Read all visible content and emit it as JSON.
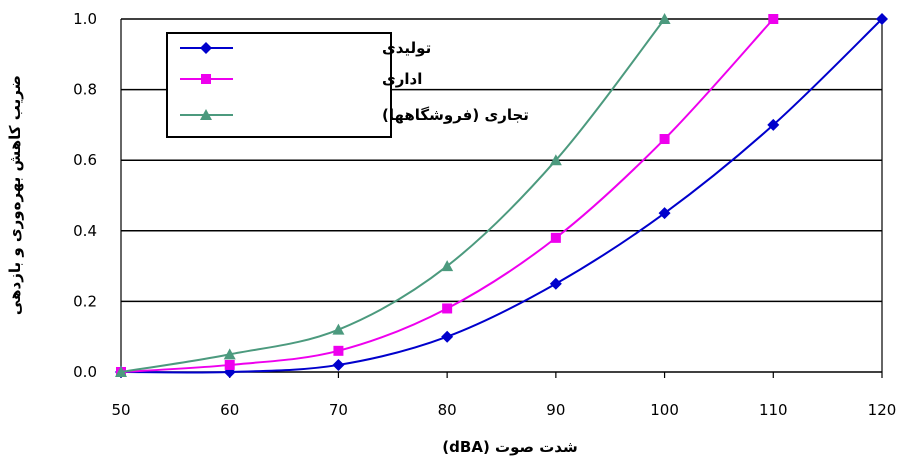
{
  "chart_data": {
    "type": "line",
    "xlabel": "شدت صوت (dBA)",
    "ylabel": "ضریب کاهش بهره‌وری و بازدهی",
    "x": [
      50,
      60,
      70,
      80,
      90,
      100,
      110,
      120
    ],
    "xlim": [
      50,
      120
    ],
    "ylim": [
      0,
      1
    ],
    "xticks": [
      "50",
      "60",
      "70",
      "80",
      "90",
      "100",
      "110",
      "120"
    ],
    "yticks": [
      "0.0",
      "0.2",
      "0.4",
      "0.6",
      "0.8",
      "1.0"
    ],
    "grid": "horizontal",
    "legend_position": "top-left",
    "series": [
      {
        "name": "تولیدی",
        "color": "#0000cc",
        "marker": "diamond",
        "x": [
          50,
          60,
          70,
          80,
          90,
          100,
          110,
          120
        ],
        "values": [
          0.0,
          0.0,
          0.02,
          0.1,
          0.25,
          0.45,
          0.7,
          1.0
        ]
      },
      {
        "name": "اداری",
        "color": "#ee00ee",
        "marker": "square",
        "x": [
          50,
          60,
          70,
          80,
          90,
          100,
          110
        ],
        "values": [
          0.0,
          0.02,
          0.06,
          0.18,
          0.38,
          0.66,
          1.0
        ]
      },
      {
        "name": "تجاری (فروشگاهها)",
        "color": "#4c9a7e",
        "marker": "triangle",
        "x": [
          50,
          60,
          70,
          80,
          90,
          100
        ],
        "values": [
          0.0,
          0.05,
          0.12,
          0.3,
          0.6,
          1.0
        ]
      }
    ]
  }
}
